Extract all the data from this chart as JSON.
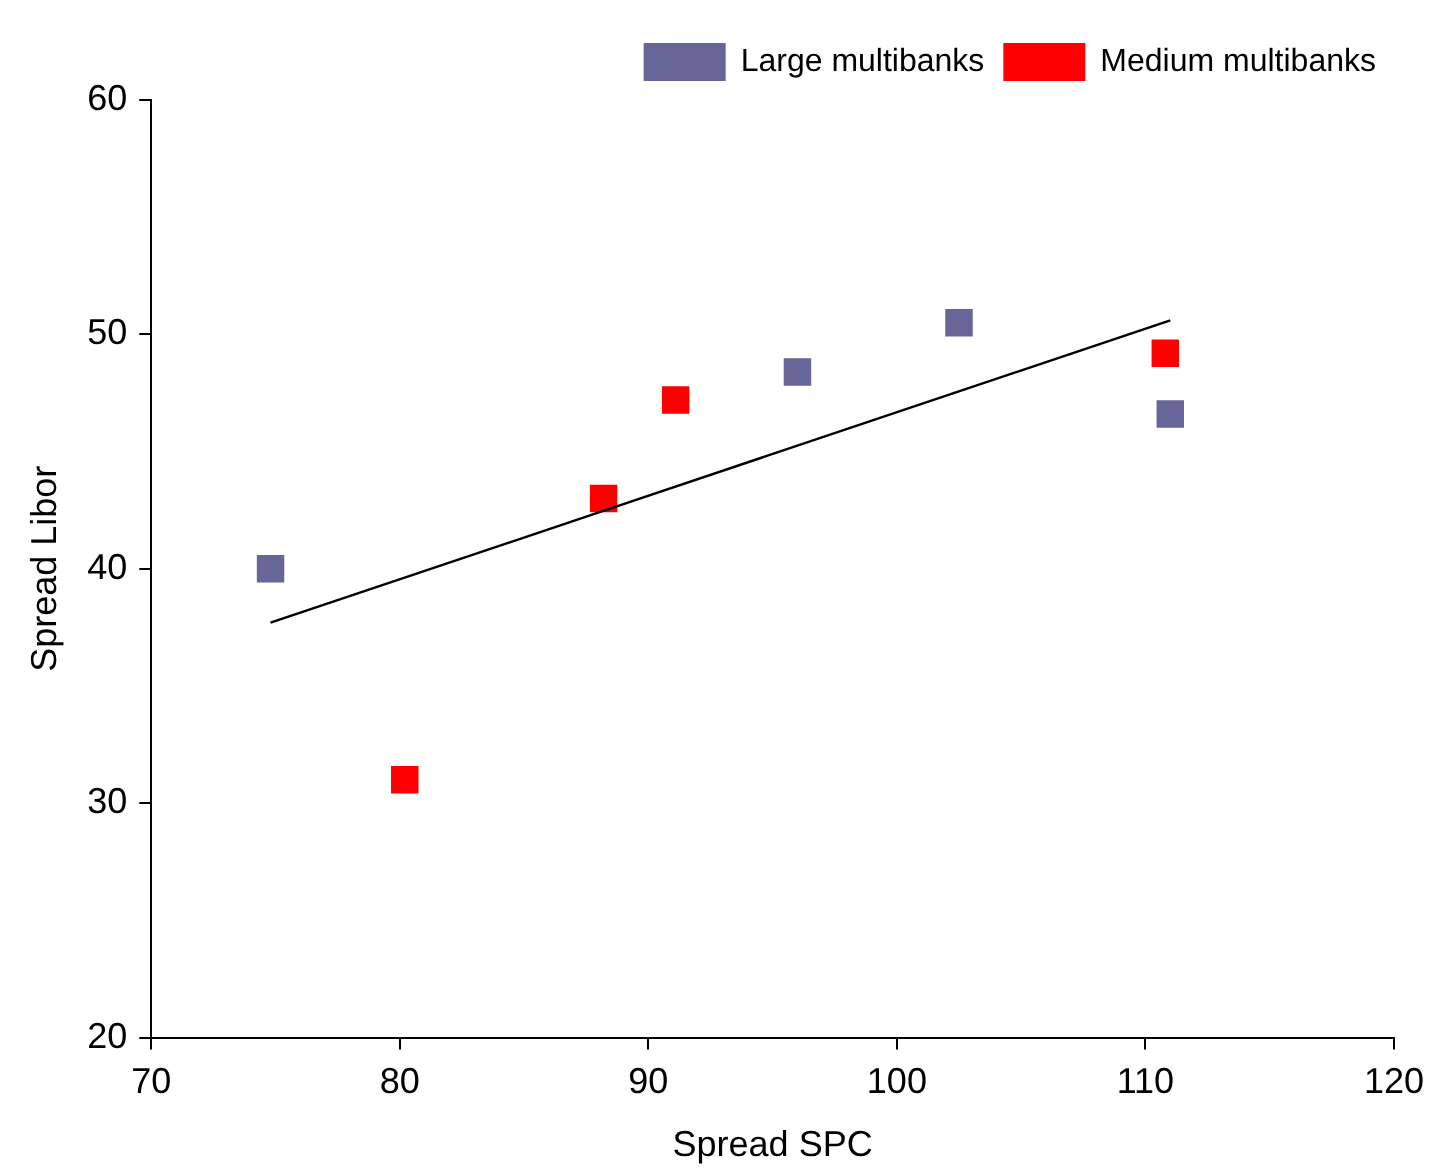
{
  "chart_data": {
    "type": "scatter",
    "xlabel": "Spread SPC",
    "ylabel": "Spread Libor",
    "xlim": [
      70,
      120
    ],
    "xticks": [
      70,
      80,
      90,
      100,
      110,
      120
    ],
    "ylim": [
      20,
      60
    ],
    "yticks": [
      20,
      30,
      40,
      50,
      60
    ],
    "grid": false,
    "legend": "top right",
    "marker": "square",
    "series": [
      {
        "name": "Large multibanks",
        "color": "#666699",
        "x": [
          74.8,
          96.0,
          102.5,
          111.0
        ],
        "values": [
          40.0,
          48.4,
          50.5,
          46.6
        ]
      },
      {
        "name": "Medium multibanks",
        "color": "#ff0000",
        "x": [
          80.2,
          88.2,
          91.1,
          110.8
        ],
        "values": [
          31.0,
          43.0,
          47.2,
          49.2
        ]
      },
      {
        "type": "line",
        "color": "#000000",
        "x": [
          74.8,
          111.0
        ],
        "values": [
          37.7,
          50.6
        ],
        "marker": "none",
        "line_style": "solid"
      }
    ]
  }
}
